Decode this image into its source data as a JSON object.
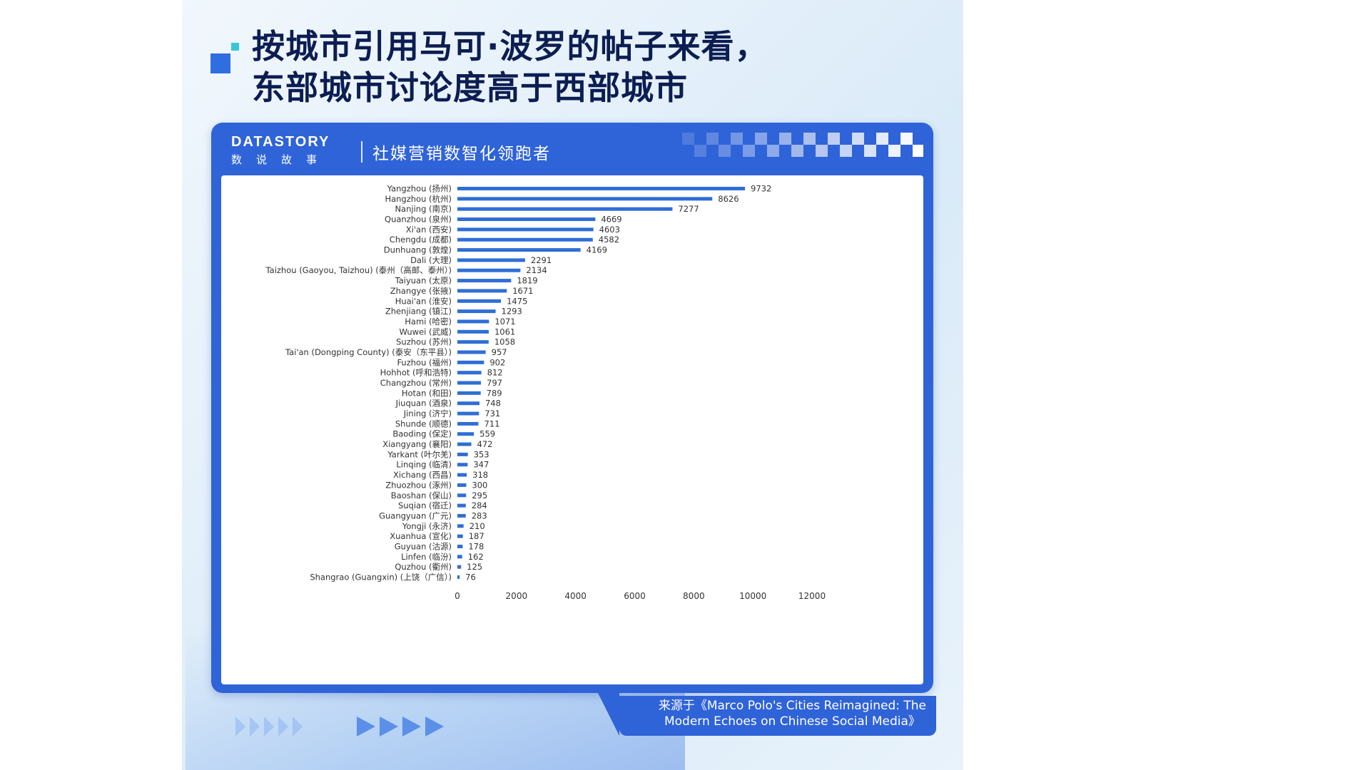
{
  "title": {
    "line1": "按城市引用马可·波罗的帖子来看，",
    "line2": "东部城市讨论度高于西部城市"
  },
  "brand": {
    "name": "DATASTORY",
    "sub": "数说故事",
    "slogan": "社媒营销数智化领跑者"
  },
  "source": {
    "line1": "来源于《Marco Polo's Cities Reimagined: The",
    "line2": "Modern Echoes on Chinese Social Media》"
  },
  "colors": {
    "bar": "#2f6ed6",
    "frame": "#2f63d8",
    "title": "#0c1d52"
  },
  "chart_data": {
    "type": "bar",
    "orientation": "horizontal",
    "categories": [
      "Yangzhou (扬州)",
      "Hangzhou (杭州)",
      "Nanjing (南京)",
      "Quanzhou (泉州)",
      "Xi'an (西安)",
      "Chengdu (成都)",
      "Dunhuang (敦煌)",
      "Dali (大理)",
      "Taizhou (Gaoyou, Taizhou) (泰州（高邮、泰州）)",
      "Taiyuan (太原)",
      "Zhangye (张掖)",
      "Huai'an (淮安)",
      "Zhenjiang (镇江)",
      "Hami (哈密)",
      "Wuwei (武威)",
      "Suzhou (苏州)",
      "Tai'an (Dongping County) (泰安（东平县）)",
      "Fuzhou (福州)",
      "Hohhot (呼和浩特)",
      "Changzhou (常州)",
      "Hotan (和田)",
      "Jiuquan (酒泉)",
      "Jining (济宁)",
      "Shunde (顺德)",
      "Baoding (保定)",
      "Xiangyang (襄阳)",
      "Yarkant (叶尔羌)",
      "Linqing (临清)",
      "Xichang (西昌)",
      "Zhuozhou (涿州)",
      "Baoshan (保山)",
      "Suqian (宿迁)",
      "Guangyuan (广元)",
      "Yongji (永济)",
      "Xuanhua (宣化)",
      "Guyuan (沽源)",
      "Linfen (临汾)",
      "Quzhou (衢州)",
      "Shangrao (Guangxin) (上饶（广信）)"
    ],
    "values": [
      9732,
      8626,
      7277,
      4669,
      4603,
      4582,
      4169,
      2291,
      2134,
      1819,
      1671,
      1475,
      1293,
      1071,
      1061,
      1058,
      957,
      902,
      812,
      797,
      789,
      748,
      731,
      711,
      559,
      472,
      353,
      347,
      318,
      300,
      295,
      284,
      283,
      210,
      187,
      178,
      162,
      125,
      76
    ],
    "xticks": [
      0,
      2000,
      4000,
      6000,
      8000,
      10000,
      12000
    ],
    "xlim": [
      0,
      12000
    ],
    "grid": false,
    "data_labels": true
  }
}
